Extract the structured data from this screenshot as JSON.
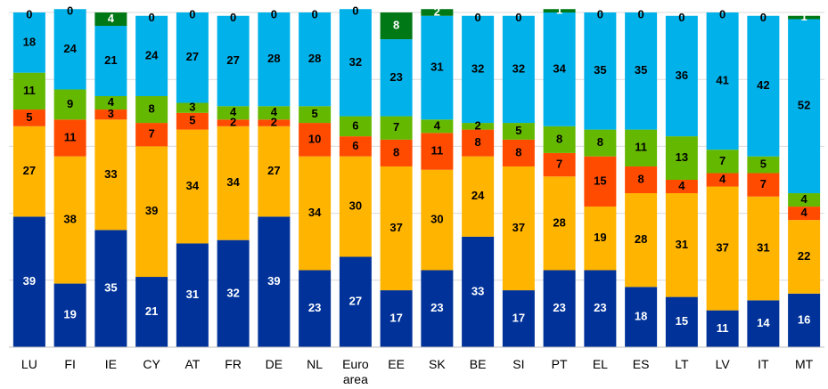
{
  "chart_data": {
    "type": "stacked_bar",
    "categories": [
      "LU",
      "FI",
      "IE",
      "CY",
      "AT",
      "FR",
      "DE",
      "NL",
      "Euro area",
      "EE",
      "SK",
      "BE",
      "SI",
      "PT",
      "EL",
      "ES",
      "LT",
      "LV",
      "IT",
      "MT"
    ],
    "series": [
      {
        "color": "#003299",
        "values": [
          39,
          19,
          35,
          21,
          31,
          32,
          39,
          23,
          27,
          17,
          23,
          33,
          17,
          23,
          23,
          18,
          15,
          11,
          14,
          16
        ]
      },
      {
        "color": "#ffb400",
        "values": [
          27,
          38,
          33,
          39,
          34,
          34,
          27,
          34,
          30,
          37,
          30,
          24,
          37,
          28,
          19,
          28,
          31,
          37,
          31,
          22
        ]
      },
      {
        "color": "#ff4b00",
        "values": [
          5,
          11,
          3,
          7,
          5,
          2,
          2,
          10,
          6,
          8,
          11,
          8,
          8,
          7,
          15,
          8,
          4,
          4,
          7,
          4
        ]
      },
      {
        "color": "#65b800",
        "values": [
          11,
          9,
          4,
          8,
          3,
          4,
          4,
          5,
          6,
          7,
          4,
          2,
          5,
          8,
          8,
          11,
          13,
          7,
          5,
          4
        ]
      },
      {
        "color": "#00b1ea",
        "values": [
          18,
          24,
          21,
          24,
          27,
          27,
          28,
          28,
          32,
          23,
          31,
          32,
          32,
          34,
          35,
          35,
          36,
          41,
          42,
          52
        ]
      },
      {
        "color": "#007816",
        "values": [
          0,
          0,
          4,
          0,
          0,
          0,
          0,
          0,
          0,
          8,
          2,
          0,
          0,
          1,
          0,
          0,
          0,
          0,
          0,
          1
        ]
      }
    ],
    "ylim": [
      0,
      100
    ],
    "yticks": [
      0,
      20,
      40,
      60,
      80,
      100
    ],
    "grid": true
  }
}
